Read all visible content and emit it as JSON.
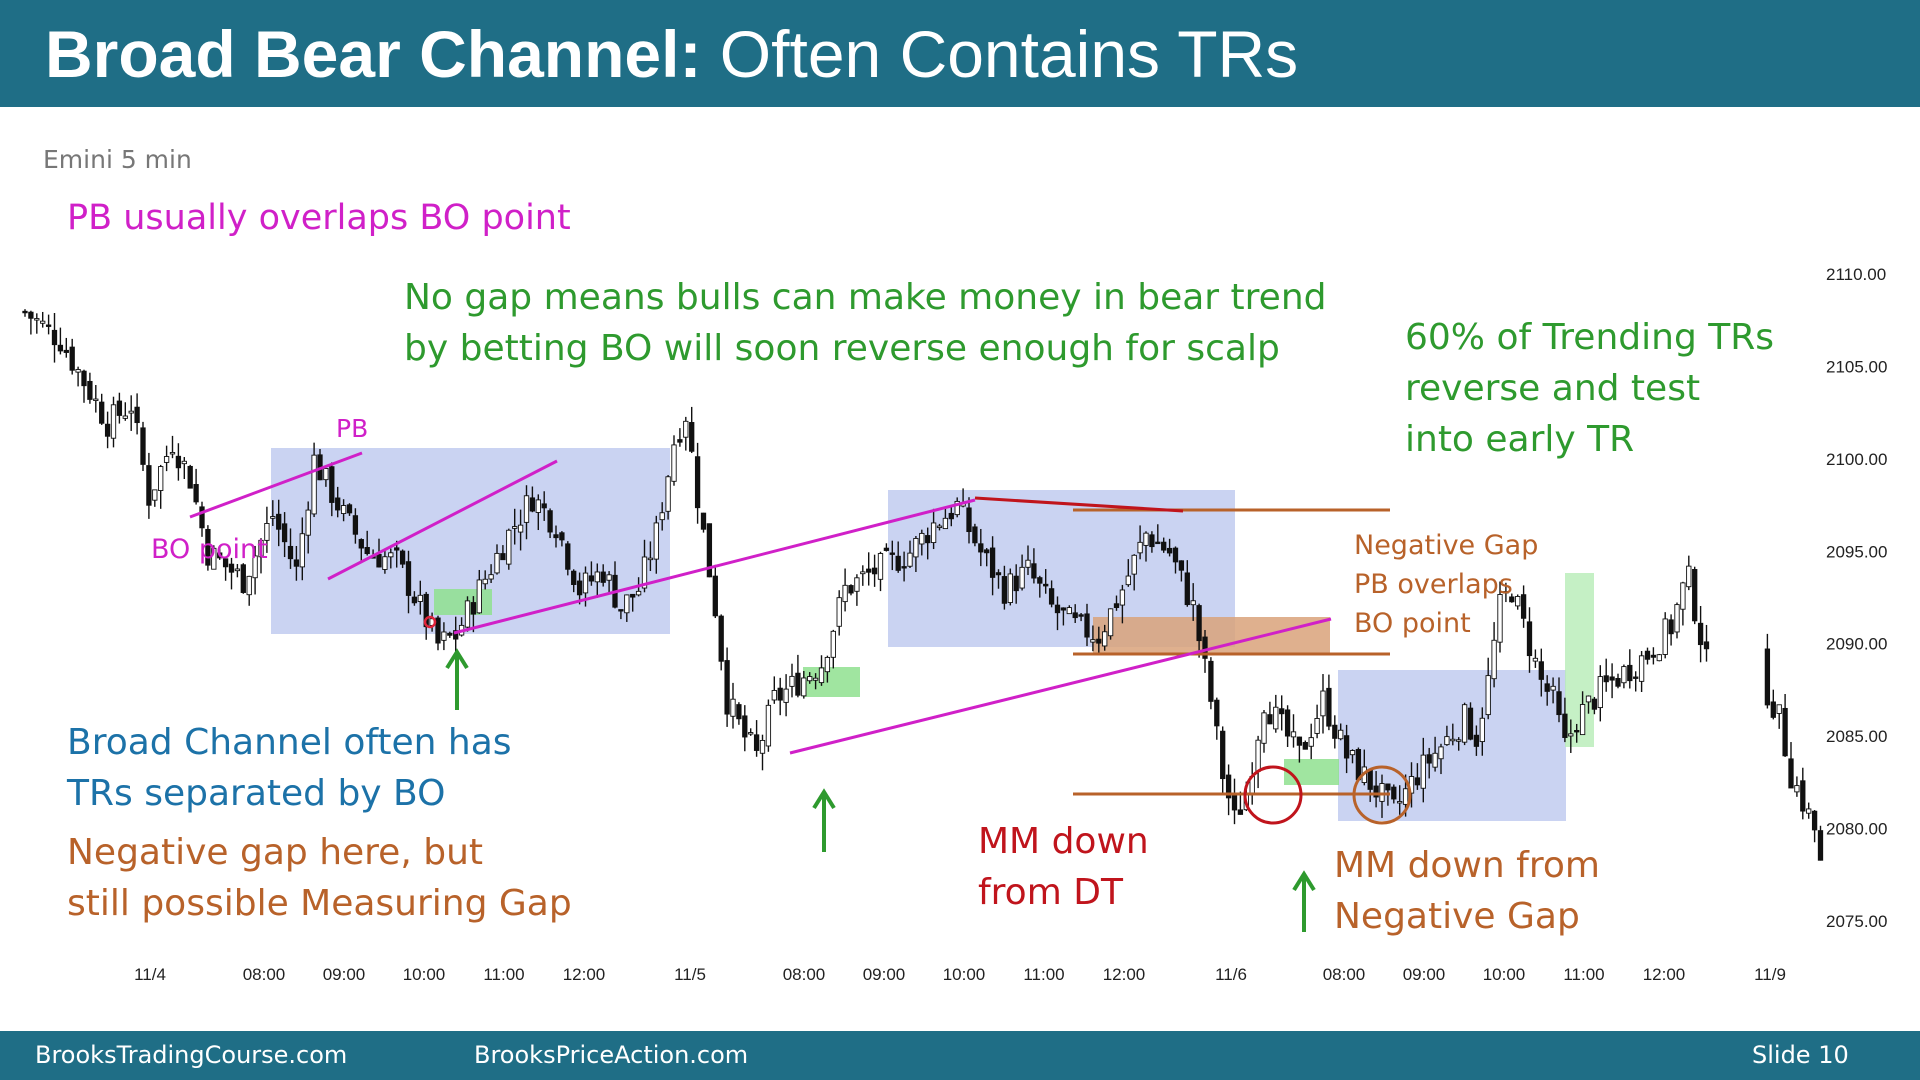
{
  "slide": {
    "title_bold": "Broad Bear Channel:",
    "title_rest": " Often Contains TRs",
    "footer_left": "BrooksTradingCourse.com",
    "footer_mid": "BrooksPriceAction.com",
    "footer_right": "Slide  10"
  },
  "colors": {
    "header": "#1f6e86",
    "magenta": "#d020c8",
    "green": "#2e9a2e",
    "blue": "#1c72a8",
    "orange": "#b8622a",
    "red": "#c0141c",
    "range_box": "#b8c4ee",
    "gap_box": "#d9a27a",
    "green_box": "#8fe08f"
  },
  "annotations": {
    "pb_overlap": "PB usually overlaps BO point",
    "no_gap": [
      "No gap means bulls can make money in bear trend",
      "by betting BO will soon reverse enough for scalp"
    ],
    "trending_trs": [
      "60% of Trending TRs",
      "reverse and test",
      "into early TR"
    ],
    "negative_gap_pb": [
      "Negative Gap",
      "PB overlaps",
      "BO point"
    ],
    "broad_channel": [
      "Broad Channel often has",
      "TRs separated by BO"
    ],
    "negative_gap_here": [
      "Negative gap here, but",
      "still possible Measuring Gap"
    ],
    "mm_dt": [
      "MM down",
      "from DT"
    ],
    "mm_neg_gap": [
      "MM down from",
      "Negative Gap"
    ],
    "pb_label": "PB",
    "bo_point_label": "BO point"
  },
  "chart_data": {
    "type": "candlestick",
    "title": "Emini 5 min",
    "y_ticks": [
      "2110.00",
      "2105.00",
      "2100.00",
      "2095.00",
      "2090.00",
      "2085.00",
      "2080.00",
      "2075.00"
    ],
    "ylim": [
      2075,
      2110
    ],
    "x_ticks": [
      "11/4",
      "08:00",
      "09:00",
      "10:00",
      "11:00",
      "12:00",
      "11/5",
      "08:00",
      "09:00",
      "10:00",
      "11:00",
      "12:00",
      "11/6",
      "08:00",
      "09:00",
      "10:00",
      "11:00",
      "12:00",
      "11/9"
    ],
    "price_path": [
      [
        0,
        2108
      ],
      [
        6,
        2106.5
      ],
      [
        14,
        2102
      ],
      [
        18,
        2103
      ],
      [
        21,
        2098
      ],
      [
        25,
        2101
      ],
      [
        28,
        2099
      ],
      [
        31,
        2095
      ],
      [
        37,
        2093.5
      ],
      [
        42,
        2097
      ],
      [
        46,
        2094
      ],
      [
        49,
        2100
      ],
      [
        54,
        2097
      ],
      [
        58,
        2095
      ],
      [
        63,
        2094.5
      ],
      [
        67,
        2092
      ],
      [
        70,
        2090
      ],
      [
        73,
        2090.5
      ],
      [
        77,
        2093
      ],
      [
        82,
        2096
      ],
      [
        86,
        2098
      ],
      [
        90,
        2096.5
      ],
      [
        94,
        2093
      ],
      [
        98,
        2094
      ],
      [
        101,
        2092
      ],
      [
        104,
        2093
      ],
      [
        107,
        2096
      ],
      [
        110,
        2101
      ],
      [
        112,
        2102.5
      ],
      [
        114,
        2098
      ],
      [
        117,
        2092
      ],
      [
        119,
        2087
      ],
      [
        122,
        2085
      ],
      [
        124,
        2084
      ],
      [
        127,
        2087
      ],
      [
        131,
        2088
      ],
      [
        135,
        2089
      ],
      [
        139,
        2093
      ],
      [
        144,
        2094
      ],
      [
        150,
        2095
      ],
      [
        154,
        2096.5
      ],
      [
        158,
        2097.5
      ],
      [
        162,
        2095
      ],
      [
        166,
        2093
      ],
      [
        170,
        2094
      ],
      [
        174,
        2092
      ],
      [
        178,
        2091
      ],
      [
        182,
        2090.5
      ],
      [
        186,
        2093
      ],
      [
        190,
        2096
      ],
      [
        194,
        2095
      ],
      [
        198,
        2092
      ],
      [
        201,
        2087
      ],
      [
        203,
        2083
      ],
      [
        205,
        2080.5
      ],
      [
        207,
        2082
      ],
      [
        210,
        2087
      ],
      [
        212,
        2086
      ],
      [
        216,
        2084
      ],
      [
        220,
        2087
      ],
      [
        224,
        2084
      ],
      [
        228,
        2082.5
      ],
      [
        232,
        2081
      ],
      [
        236,
        2083
      ],
      [
        240,
        2084.5
      ],
      [
        244,
        2086
      ],
      [
        246,
        2085
      ],
      [
        248,
        2088
      ],
      [
        250,
        2092
      ],
      [
        252,
        2093
      ],
      [
        254,
        2091
      ],
      [
        257,
        2088
      ],
      [
        259,
        2087
      ],
      [
        261,
        2084.5
      ],
      [
        263,
        2086
      ],
      [
        267,
        2087.5
      ],
      [
        271,
        2088.5
      ],
      [
        275,
        2089.5
      ],
      [
        279,
        2091
      ],
      [
        281,
        2093
      ],
      [
        282,
        2093.5
      ],
      [
        286,
        2087.5
      ],
      [
        288,
        2086
      ],
      [
        290,
        2083
      ],
      [
        292,
        2081.5
      ],
      [
        294,
        2080
      ],
      [
        295,
        2078
      ]
    ]
  }
}
